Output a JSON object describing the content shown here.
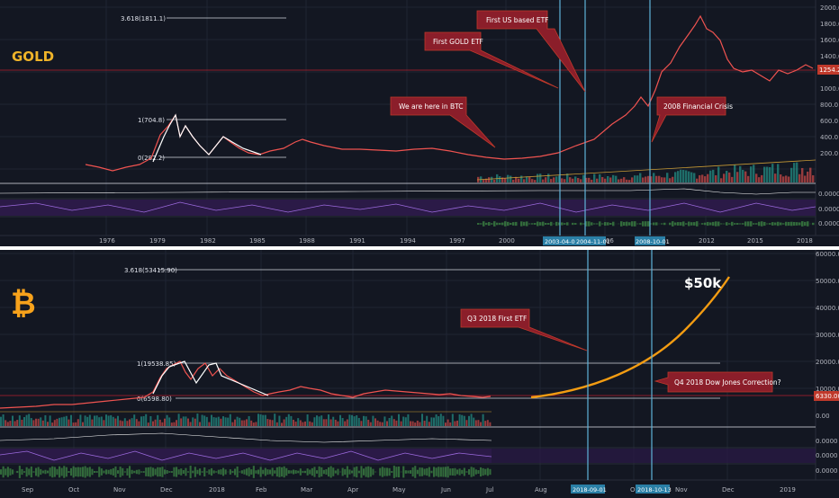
{
  "gold": {
    "title": "GOLD",
    "price_ticks": [
      "2000.0",
      "1800.0",
      "1600.0",
      "1400.0",
      "1200.0",
      "1000.0",
      "800.0",
      "600.0",
      "400.0",
      "200.0"
    ],
    "last_price": "1254.2",
    "indicator_ticks": [
      "0.0000",
      "0.0000",
      "0.0000"
    ],
    "x_ticks": [
      "1976",
      "1979",
      "1982",
      "1985",
      "1988",
      "1991",
      "1994",
      "1997",
      "2000",
      "2006",
      "2009",
      "2012",
      "2015",
      "2018"
    ],
    "date_badges": [
      "2003-04-0",
      "2004-11-01",
      "2008-10-01"
    ],
    "fib": {
      "top": "3.618(1811.1)",
      "one": "1(704.8)",
      "zero": "0(282.2)"
    },
    "callouts": [
      "First US based ETF",
      "First GOLD ETF",
      "We are here in BTC",
      "2008 Financial Crisis"
    ]
  },
  "btc": {
    "title": "₿",
    "price_ticks": [
      "60000.00",
      "50000.00",
      "40000.00",
      "30000.00",
      "20000.00",
      "10000.00",
      "0.00"
    ],
    "last_price": "6330.00",
    "indicator_ticks": [
      "0.0000",
      "0.0000",
      "0.0000"
    ],
    "x_ticks": [
      "Sep",
      "Oct",
      "Nov",
      "Dec",
      "2018",
      "Feb",
      "Mar",
      "Apr",
      "May",
      "Jun",
      "Jul",
      "Aug",
      "Oct",
      "Nov",
      "Dec",
      "2019"
    ],
    "date_badges": [
      "2018-09-01",
      "2018-10-13"
    ],
    "fib": {
      "top": "3.618(53415.90)",
      "one": "1(19538.85)",
      "zero": "0(6598.80)"
    },
    "target_label": "$50k",
    "callouts": [
      "Q3 2018 First ETF",
      "Q4 2018 Dow Jones Correction?"
    ]
  },
  "colors": {
    "background": "#131722",
    "gold_accent": "#f0b429",
    "projection": "#f39c12",
    "marker_line": "#5fb3d9",
    "callout_bg": "#8b1e2a",
    "up": "#26a69a",
    "down": "#ef5350"
  }
}
